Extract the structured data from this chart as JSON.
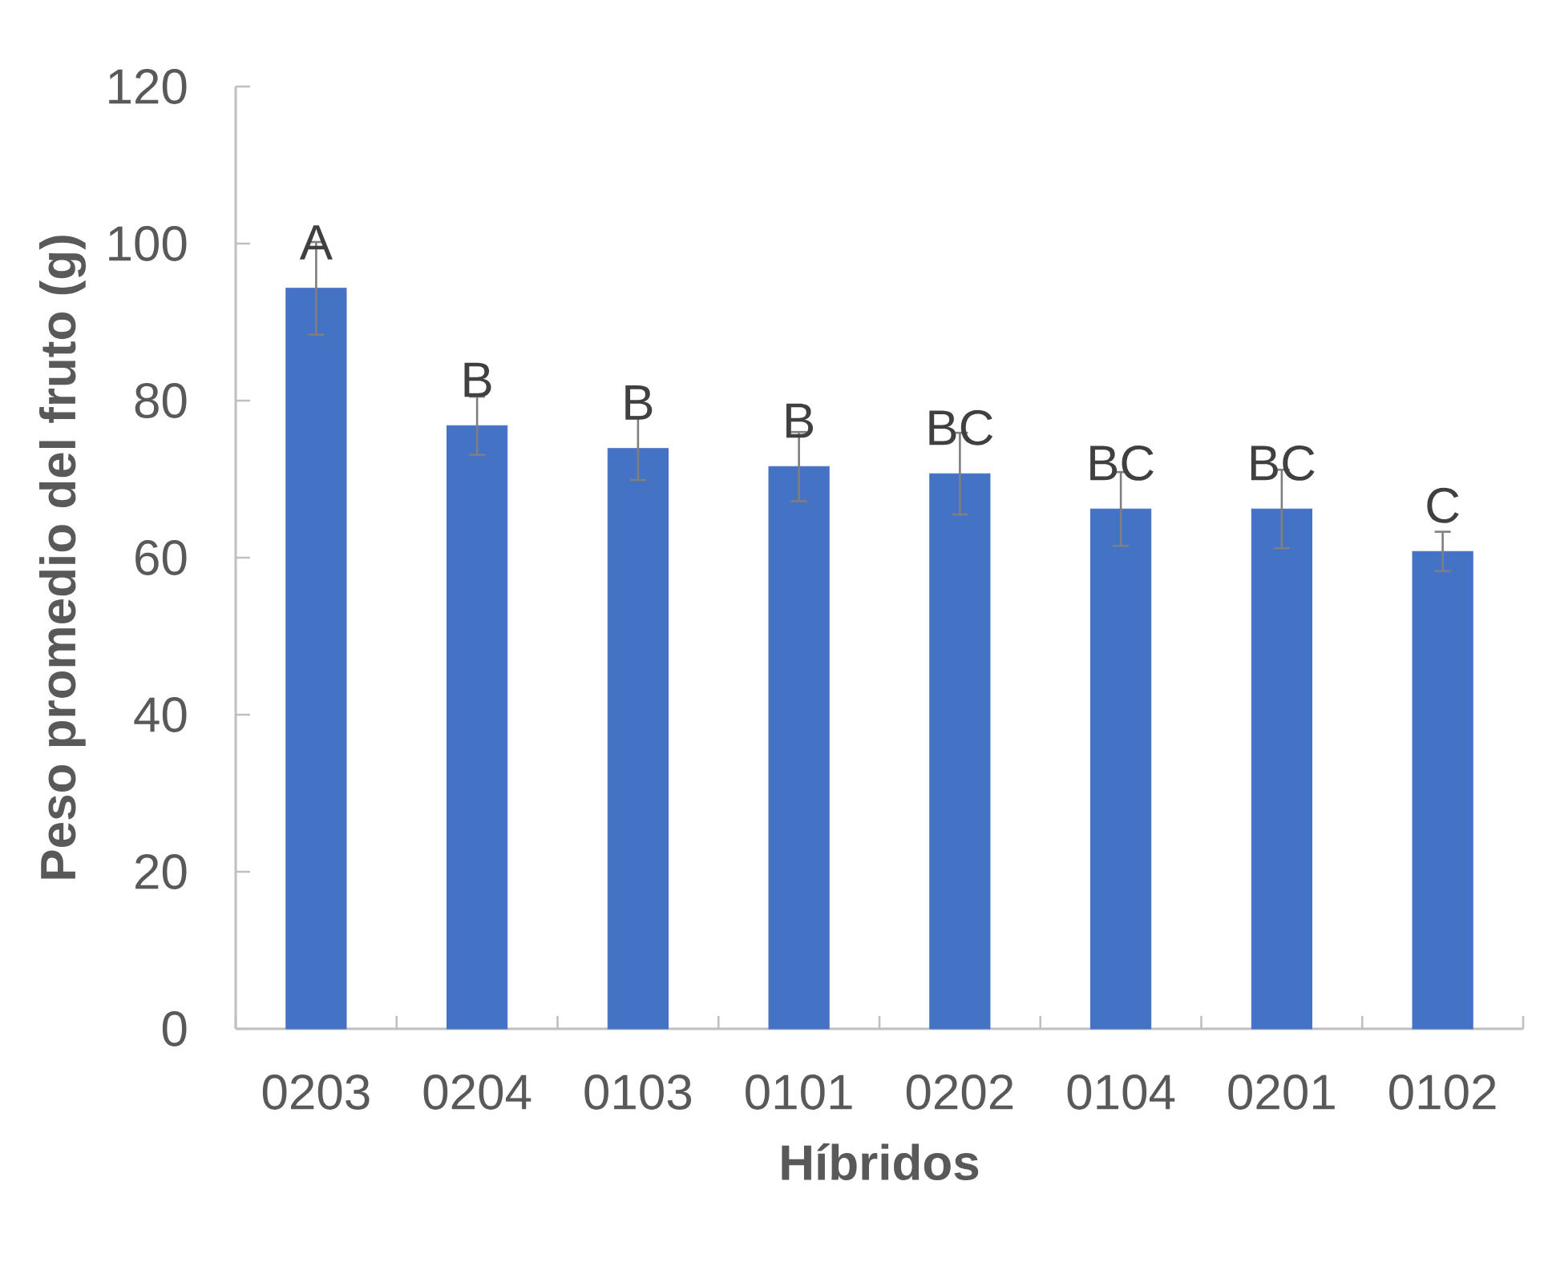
{
  "chart_data": {
    "type": "bar",
    "xlabel": "Híbridos",
    "ylabel": "Peso promedio del fruto (g)",
    "categories": [
      "0203",
      "0204",
      "0103",
      "0101",
      "0202",
      "0104",
      "0201",
      "0102"
    ],
    "values": [
      94.3,
      76.8,
      73.9,
      71.6,
      70.7,
      66.2,
      66.2,
      60.8
    ],
    "errors": [
      5.9,
      3.7,
      4.0,
      4.4,
      5.2,
      4.7,
      5.0,
      2.5
    ],
    "color": "#4472c4",
    "ylim": [
      0,
      120
    ],
    "yticks": [
      0,
      20,
      40,
      60,
      80,
      100,
      120
    ],
    "annotations": [
      {
        "text": "A",
        "x": "0203",
        "y": 94.3
      },
      {
        "text": "B",
        "x": "0204",
        "y": 76.8
      },
      {
        "text": "B",
        "x": "0103",
        "y": 73.9
      },
      {
        "text": "B",
        "x": "0101",
        "y": 71.6
      },
      {
        "text": "BC",
        "x": "0202",
        "y": 70.7
      },
      {
        "text": "BC",
        "x": "0104",
        "y": 66.2
      },
      {
        "text": "BC",
        "x": "0201",
        "y": 66.2
      },
      {
        "text": "C",
        "x": "0102",
        "y": 60.8
      }
    ]
  }
}
